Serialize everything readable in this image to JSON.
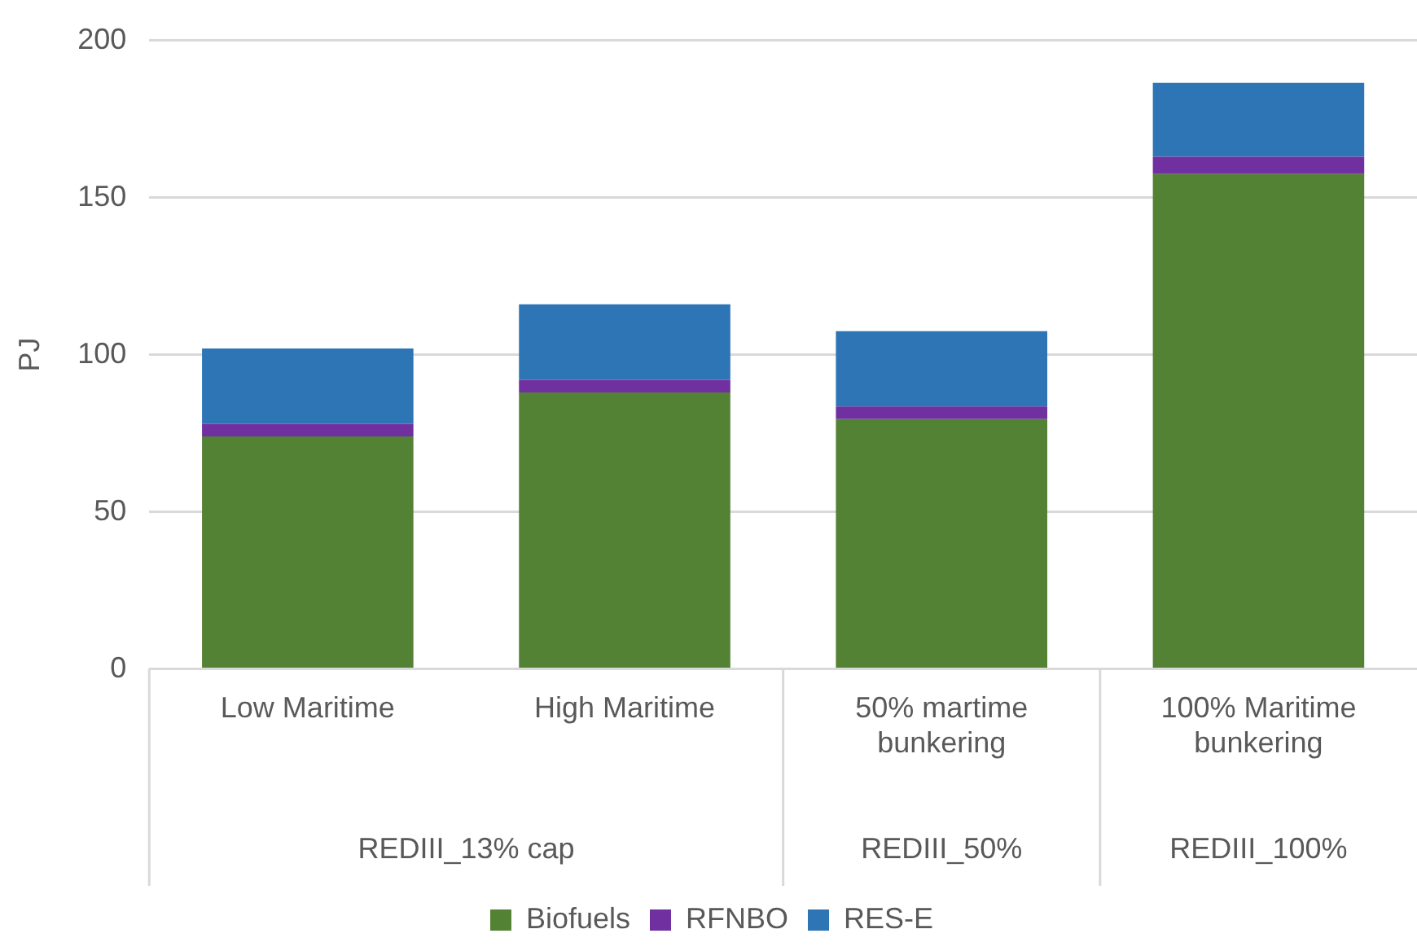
{
  "chart_data": {
    "type": "bar",
    "stacked": true,
    "ylabel": "PJ",
    "categories": [
      "Low Maritime",
      "High Maritime",
      "50% martime bunkering",
      "100% Maritime bunkering"
    ],
    "series": [
      {
        "name": "Biofuels",
        "color": "#548235",
        "values": [
          74,
          88,
          79.5,
          157.5
        ]
      },
      {
        "name": "RFNBO",
        "color": "#7030a0",
        "values": [
          4,
          4,
          4,
          5.5
        ]
      },
      {
        "name": "RES-E",
        "color": "#2e75b6",
        "values": [
          24,
          24,
          24,
          23.5
        ]
      }
    ],
    "annotations": [
      "REDIII_13% cap",
      "REDIII_50%",
      "REDIII_100%"
    ],
    "ylim": [
      0,
      200
    ],
    "yticks": [
      0,
      50,
      100,
      150,
      200
    ],
    "grid": "y",
    "legend": "bottom"
  }
}
